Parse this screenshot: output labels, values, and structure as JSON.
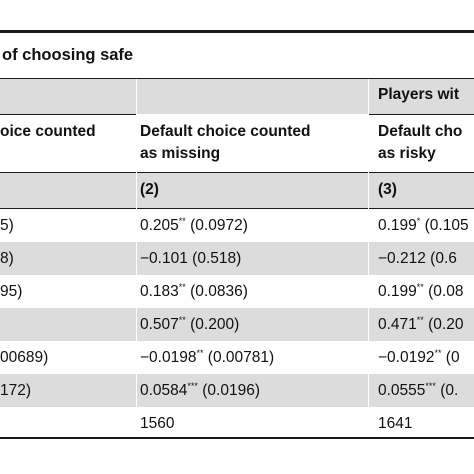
{
  "caption": "of choosing safe",
  "header_group": "Players wit",
  "columns": [
    {
      "label_line1": "oice counted",
      "label_line2": "",
      "number": ""
    },
    {
      "label_line1": "Default choice counted",
      "label_line2": "as missing",
      "number": "(2)"
    },
    {
      "label_line1": "Default cho",
      "label_line2": "as risky",
      "number": "(3)"
    }
  ],
  "rows": [
    {
      "c1": "5)",
      "c2": {
        "coef": "0.205",
        "stars": "**",
        "se": "(0.0972)"
      },
      "c3": {
        "coef": "0.199",
        "stars": "*",
        "se": "(0.105"
      }
    },
    {
      "c1": "8)",
      "c2": {
        "coef": "−0.101",
        "stars": "",
        "se": "(0.518)"
      },
      "c3": {
        "coef": "−0.212",
        "stars": "",
        "se": "(0.6"
      }
    },
    {
      "c1": "95)",
      "c2": {
        "coef": "0.183",
        "stars": "**",
        "se": "(0.0836)"
      },
      "c3": {
        "coef": "0.199",
        "stars": "**",
        "se": "(0.08"
      }
    },
    {
      "c1": "",
      "c2": {
        "coef": "0.507",
        "stars": "**",
        "se": "(0.200)"
      },
      "c3": {
        "coef": "0.471",
        "stars": "**",
        "se": "(0.20"
      }
    },
    {
      "c1": "00689)",
      "c2": {
        "coef": "−0.0198",
        "stars": "**",
        "se": "(0.00781)"
      },
      "c3": {
        "coef": "−0.0192",
        "stars": "**",
        "se": "(0"
      }
    },
    {
      "c1": "172)",
      "c2": {
        "coef": "0.0584",
        "stars": "***",
        "se": "(0.0196)"
      },
      "c3": {
        "coef": "0.0555",
        "stars": "***",
        "se": "(0."
      }
    },
    {
      "c1": "",
      "c2": {
        "coef": "1560",
        "stars": "",
        "se": ""
      },
      "c3": {
        "coef": "1641",
        "stars": "",
        "se": ""
      }
    }
  ]
}
